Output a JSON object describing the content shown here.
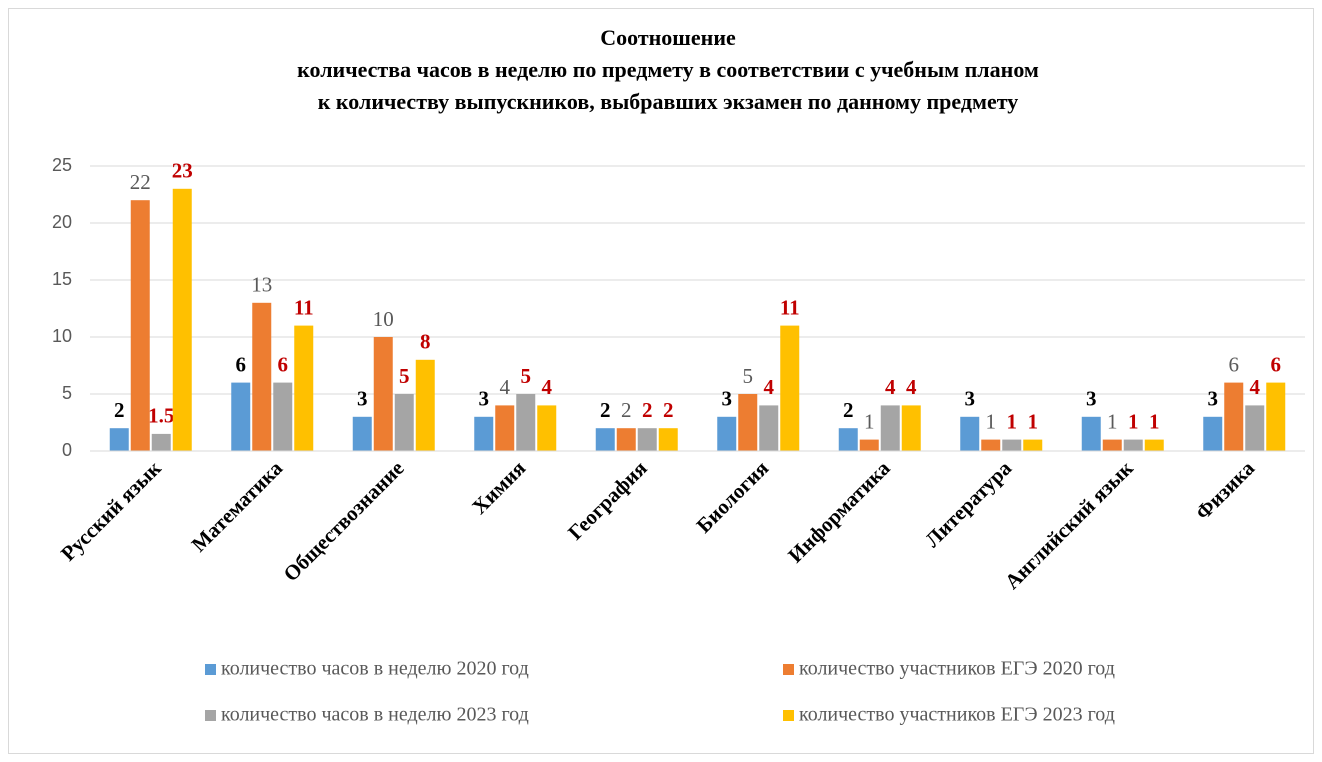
{
  "chart_data": {
    "type": "bar",
    "title": [
      "Соотношение",
      "количества часов в неделю по предмету в соответствии с учебным планом",
      "к количеству выпускников, выбравших экзамен по данному предмету"
    ],
    "categories": [
      "Русский язык",
      "Математика",
      "Обществознание",
      "Химия",
      "География",
      "Биология",
      "Информатика",
      "Литература",
      "Английский язык",
      "Физика"
    ],
    "series": [
      {
        "name": "количество часов в неделю 2020 год",
        "color": "#5b9bd5",
        "label_color": "#000000",
        "values": [
          2,
          6,
          3,
          3,
          2,
          3,
          2,
          3,
          3,
          3
        ]
      },
      {
        "name": "количество участников ЕГЭ 2020 год",
        "color": "#ed7d31",
        "label_color": "#595959",
        "values": [
          22,
          13,
          10,
          4,
          2,
          5,
          1,
          1,
          1,
          6
        ]
      },
      {
        "name": "количество часов в неделю 2023 год",
        "color": "#a5a5a5",
        "label_color": "#c00000",
        "values": [
          1.5,
          6,
          5,
          5,
          2,
          4,
          4,
          1,
          1,
          4
        ]
      },
      {
        "name": "количество участников ЕГЭ 2023 год",
        "color": "#ffc000",
        "label_color": "#c00000",
        "values": [
          23,
          11,
          8,
          4,
          2,
          11,
          4,
          1,
          1,
          6
        ]
      }
    ],
    "ylim": [
      0,
      25
    ],
    "yticks": [
      0,
      5,
      10,
      15,
      20,
      25
    ],
    "grid": true,
    "legend": "bottom"
  }
}
